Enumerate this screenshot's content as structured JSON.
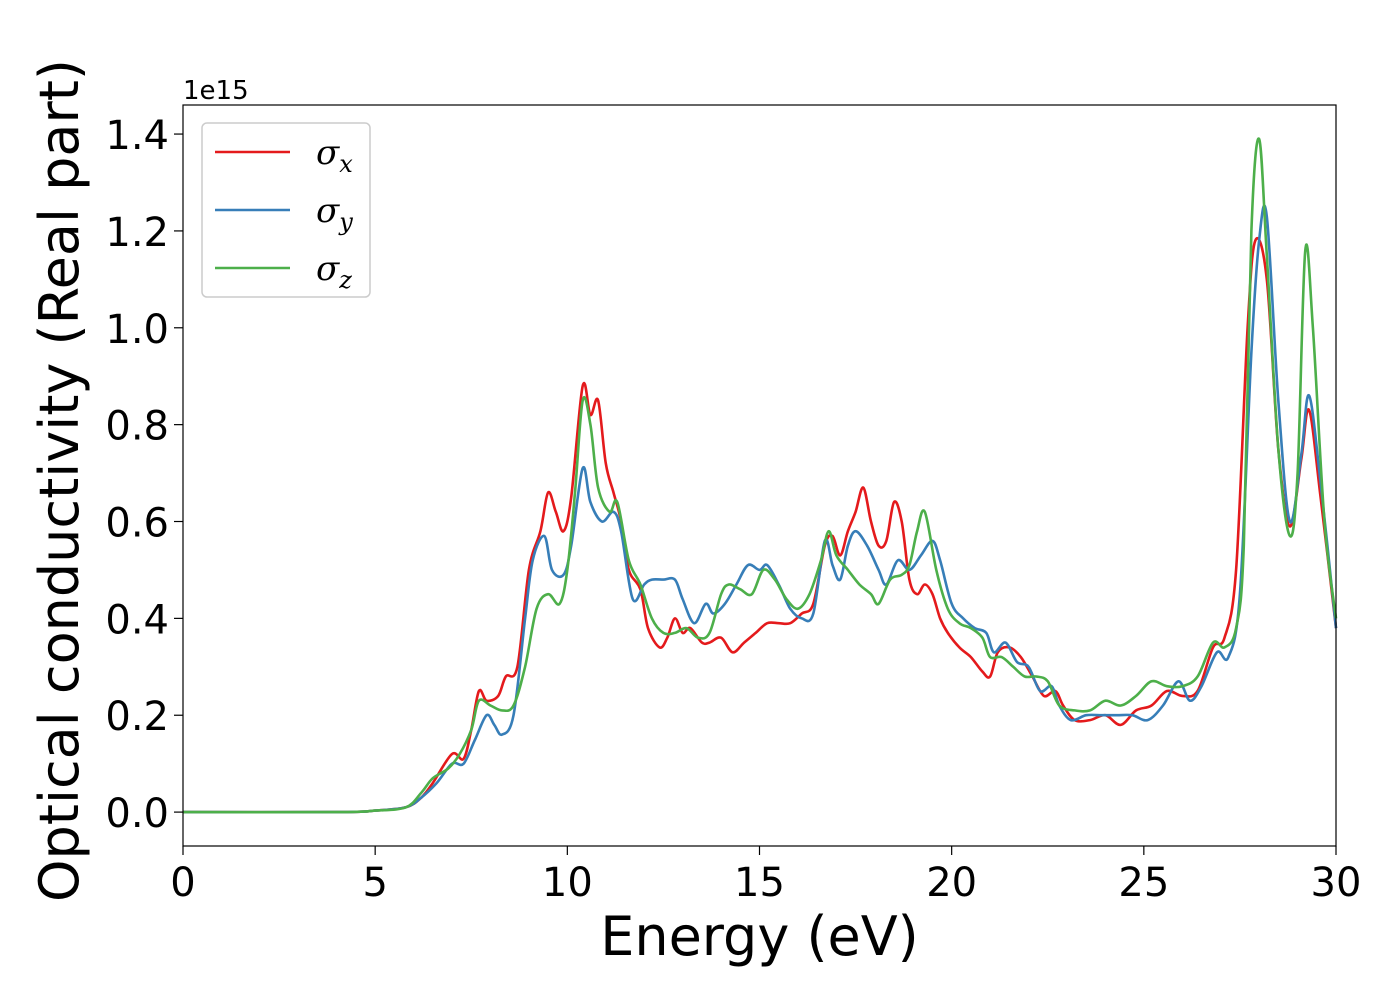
{
  "chart_data": {
    "type": "line",
    "title": "",
    "xlabel": "Energy (eV)",
    "ylabel": "Optical conductivity (Real part)",
    "y_offset_label": "1e15",
    "xlim": [
      0,
      30
    ],
    "ylim": [
      -0.07,
      1.46
    ],
    "xticks": [
      0,
      5,
      10,
      15,
      20,
      25,
      30
    ],
    "xtick_labels": [
      "0",
      "5",
      "10",
      "15",
      "20",
      "25",
      "30"
    ],
    "yticks": [
      0.0,
      0.2,
      0.4,
      0.6,
      0.8,
      1.0,
      1.2,
      1.4
    ],
    "ytick_labels": [
      "0.0",
      "0.2",
      "0.4",
      "0.6",
      "0.8",
      "1.0",
      "1.2",
      "1.4"
    ],
    "grid": false,
    "legend_position": "top-left",
    "series": [
      {
        "name": "σx",
        "name_base": "σ",
        "name_sub": "x",
        "color": "#e41a1c",
        "points": [
          [
            0,
            0
          ],
          [
            4,
            0
          ],
          [
            5,
            0.003
          ],
          [
            5.8,
            0.01
          ],
          [
            6.2,
            0.03
          ],
          [
            6.5,
            0.06
          ],
          [
            7,
            0.12
          ],
          [
            7.3,
            0.11
          ],
          [
            7.5,
            0.17
          ],
          [
            7.7,
            0.25
          ],
          [
            7.9,
            0.23
          ],
          [
            8.2,
            0.24
          ],
          [
            8.4,
            0.28
          ],
          [
            8.7,
            0.3
          ],
          [
            9,
            0.5
          ],
          [
            9.3,
            0.58
          ],
          [
            9.5,
            0.66
          ],
          [
            9.7,
            0.62
          ],
          [
            9.9,
            0.58
          ],
          [
            10.1,
            0.65
          ],
          [
            10.4,
            0.88
          ],
          [
            10.6,
            0.82
          ],
          [
            10.8,
            0.85
          ],
          [
            11,
            0.72
          ],
          [
            11.2,
            0.66
          ],
          [
            11.4,
            0.6
          ],
          [
            11.6,
            0.5
          ],
          [
            11.9,
            0.46
          ],
          [
            12.1,
            0.38
          ],
          [
            12.4,
            0.34
          ],
          [
            12.6,
            0.36
          ],
          [
            12.8,
            0.4
          ],
          [
            13,
            0.37
          ],
          [
            13.2,
            0.38
          ],
          [
            13.5,
            0.35
          ],
          [
            13.7,
            0.35
          ],
          [
            14,
            0.36
          ],
          [
            14.3,
            0.33
          ],
          [
            14.6,
            0.35
          ],
          [
            14.9,
            0.37
          ],
          [
            15.2,
            0.39
          ],
          [
            15.5,
            0.39
          ],
          [
            15.8,
            0.39
          ],
          [
            16.1,
            0.41
          ],
          [
            16.4,
            0.43
          ],
          [
            16.7,
            0.55
          ],
          [
            16.9,
            0.57
          ],
          [
            17.1,
            0.53
          ],
          [
            17.3,
            0.58
          ],
          [
            17.5,
            0.62
          ],
          [
            17.7,
            0.67
          ],
          [
            17.9,
            0.6
          ],
          [
            18.1,
            0.55
          ],
          [
            18.3,
            0.56
          ],
          [
            18.5,
            0.64
          ],
          [
            18.7,
            0.6
          ],
          [
            18.9,
            0.48
          ],
          [
            19.1,
            0.45
          ],
          [
            19.3,
            0.47
          ],
          [
            19.5,
            0.45
          ],
          [
            19.7,
            0.4
          ],
          [
            19.9,
            0.37
          ],
          [
            20.2,
            0.34
          ],
          [
            20.5,
            0.32
          ],
          [
            20.8,
            0.29
          ],
          [
            21,
            0.28
          ],
          [
            21.2,
            0.33
          ],
          [
            21.5,
            0.34
          ],
          [
            21.8,
            0.32
          ],
          [
            22.1,
            0.28
          ],
          [
            22.4,
            0.24
          ],
          [
            22.7,
            0.25
          ],
          [
            22.9,
            0.22
          ],
          [
            23.2,
            0.19
          ],
          [
            23.6,
            0.19
          ],
          [
            24,
            0.2
          ],
          [
            24.4,
            0.18
          ],
          [
            24.8,
            0.21
          ],
          [
            25.2,
            0.22
          ],
          [
            25.6,
            0.25
          ],
          [
            26,
            0.24
          ],
          [
            26.4,
            0.25
          ],
          [
            26.8,
            0.34
          ],
          [
            27.1,
            0.36
          ],
          [
            27.4,
            0.5
          ],
          [
            27.7,
            1.0
          ],
          [
            27.9,
            1.18
          ],
          [
            28.2,
            1.1
          ],
          [
            28.5,
            0.75
          ],
          [
            28.8,
            0.59
          ],
          [
            29.1,
            0.73
          ],
          [
            29.3,
            0.83
          ],
          [
            29.6,
            0.65
          ],
          [
            30,
            0.38
          ]
        ]
      },
      {
        "name": "σy",
        "name_base": "σ",
        "name_sub": "y",
        "color": "#377eb8",
        "points": [
          [
            0,
            0
          ],
          [
            4,
            0
          ],
          [
            5,
            0.003
          ],
          [
            5.8,
            0.01
          ],
          [
            6.2,
            0.03
          ],
          [
            6.6,
            0.06
          ],
          [
            7,
            0.1
          ],
          [
            7.3,
            0.1
          ],
          [
            7.6,
            0.15
          ],
          [
            7.9,
            0.2
          ],
          [
            8.1,
            0.18
          ],
          [
            8.3,
            0.16
          ],
          [
            8.6,
            0.2
          ],
          [
            8.9,
            0.4
          ],
          [
            9.1,
            0.52
          ],
          [
            9.4,
            0.57
          ],
          [
            9.6,
            0.5
          ],
          [
            9.9,
            0.49
          ],
          [
            10.1,
            0.55
          ],
          [
            10.4,
            0.71
          ],
          [
            10.6,
            0.64
          ],
          [
            10.9,
            0.6
          ],
          [
            11.2,
            0.62
          ],
          [
            11.4,
            0.58
          ],
          [
            11.7,
            0.44
          ],
          [
            12,
            0.47
          ],
          [
            12.2,
            0.48
          ],
          [
            12.5,
            0.48
          ],
          [
            12.8,
            0.48
          ],
          [
            13,
            0.44
          ],
          [
            13.3,
            0.39
          ],
          [
            13.6,
            0.43
          ],
          [
            13.8,
            0.41
          ],
          [
            14.1,
            0.43
          ],
          [
            14.4,
            0.47
          ],
          [
            14.7,
            0.51
          ],
          [
            15,
            0.5
          ],
          [
            15.2,
            0.51
          ],
          [
            15.5,
            0.47
          ],
          [
            15.8,
            0.42
          ],
          [
            16.1,
            0.4
          ],
          [
            16.4,
            0.41
          ],
          [
            16.7,
            0.56
          ],
          [
            16.9,
            0.51
          ],
          [
            17.1,
            0.48
          ],
          [
            17.3,
            0.55
          ],
          [
            17.5,
            0.58
          ],
          [
            17.8,
            0.55
          ],
          [
            18.1,
            0.5
          ],
          [
            18.3,
            0.47
          ],
          [
            18.6,
            0.52
          ],
          [
            18.9,
            0.5
          ],
          [
            19.2,
            0.53
          ],
          [
            19.5,
            0.56
          ],
          [
            19.7,
            0.52
          ],
          [
            20,
            0.43
          ],
          [
            20.3,
            0.4
          ],
          [
            20.6,
            0.38
          ],
          [
            20.9,
            0.37
          ],
          [
            21.1,
            0.33
          ],
          [
            21.4,
            0.35
          ],
          [
            21.7,
            0.31
          ],
          [
            22,
            0.3
          ],
          [
            22.3,
            0.25
          ],
          [
            22.6,
            0.26
          ],
          [
            22.8,
            0.22
          ],
          [
            23.1,
            0.19
          ],
          [
            23.5,
            0.2
          ],
          [
            23.9,
            0.2
          ],
          [
            24.3,
            0.2
          ],
          [
            24.7,
            0.2
          ],
          [
            25.1,
            0.19
          ],
          [
            25.5,
            0.22
          ],
          [
            25.9,
            0.27
          ],
          [
            26.2,
            0.23
          ],
          [
            26.5,
            0.26
          ],
          [
            26.9,
            0.33
          ],
          [
            27.2,
            0.32
          ],
          [
            27.5,
            0.45
          ],
          [
            27.8,
            0.95
          ],
          [
            28,
            1.18
          ],
          [
            28.2,
            1.23
          ],
          [
            28.5,
            0.85
          ],
          [
            28.8,
            0.6
          ],
          [
            29.1,
            0.74
          ],
          [
            29.3,
            0.86
          ],
          [
            29.6,
            0.68
          ],
          [
            30,
            0.38
          ]
        ]
      },
      {
        "name": "σz",
        "name_base": "σ",
        "name_sub": "z",
        "color": "#4daf4a",
        "points": [
          [
            0,
            0
          ],
          [
            4,
            0
          ],
          [
            5,
            0.003
          ],
          [
            5.8,
            0.01
          ],
          [
            6.2,
            0.04
          ],
          [
            6.5,
            0.07
          ],
          [
            6.9,
            0.09
          ],
          [
            7.2,
            0.12
          ],
          [
            7.5,
            0.17
          ],
          [
            7.7,
            0.23
          ],
          [
            8,
            0.22
          ],
          [
            8.3,
            0.21
          ],
          [
            8.6,
            0.22
          ],
          [
            8.9,
            0.3
          ],
          [
            9.2,
            0.42
          ],
          [
            9.5,
            0.45
          ],
          [
            9.8,
            0.43
          ],
          [
            10,
            0.5
          ],
          [
            10.2,
            0.66
          ],
          [
            10.4,
            0.85
          ],
          [
            10.6,
            0.8
          ],
          [
            10.8,
            0.67
          ],
          [
            11.1,
            0.62
          ],
          [
            11.3,
            0.64
          ],
          [
            11.6,
            0.52
          ],
          [
            11.9,
            0.47
          ],
          [
            12.2,
            0.4
          ],
          [
            12.5,
            0.37
          ],
          [
            12.8,
            0.37
          ],
          [
            13.1,
            0.38
          ],
          [
            13.4,
            0.36
          ],
          [
            13.7,
            0.37
          ],
          [
            14,
            0.45
          ],
          [
            14.2,
            0.47
          ],
          [
            14.5,
            0.46
          ],
          [
            14.8,
            0.45
          ],
          [
            15.1,
            0.5
          ],
          [
            15.4,
            0.48
          ],
          [
            15.7,
            0.44
          ],
          [
            16,
            0.42
          ],
          [
            16.3,
            0.45
          ],
          [
            16.6,
            0.52
          ],
          [
            16.8,
            0.58
          ],
          [
            17,
            0.53
          ],
          [
            17.3,
            0.5
          ],
          [
            17.6,
            0.47
          ],
          [
            17.9,
            0.45
          ],
          [
            18.1,
            0.43
          ],
          [
            18.4,
            0.48
          ],
          [
            18.7,
            0.49
          ],
          [
            18.9,
            0.51
          ],
          [
            19.1,
            0.58
          ],
          [
            19.3,
            0.62
          ],
          [
            19.6,
            0.5
          ],
          [
            19.9,
            0.42
          ],
          [
            20.2,
            0.39
          ],
          [
            20.5,
            0.38
          ],
          [
            20.8,
            0.36
          ],
          [
            21,
            0.32
          ],
          [
            21.3,
            0.32
          ],
          [
            21.6,
            0.3
          ],
          [
            21.9,
            0.28
          ],
          [
            22.2,
            0.28
          ],
          [
            22.5,
            0.27
          ],
          [
            22.8,
            0.22
          ],
          [
            23.2,
            0.21
          ],
          [
            23.6,
            0.21
          ],
          [
            24,
            0.23
          ],
          [
            24.4,
            0.22
          ],
          [
            24.8,
            0.24
          ],
          [
            25.2,
            0.27
          ],
          [
            25.6,
            0.26
          ],
          [
            26,
            0.26
          ],
          [
            26.4,
            0.28
          ],
          [
            26.8,
            0.35
          ],
          [
            27.1,
            0.34
          ],
          [
            27.4,
            0.38
          ],
          [
            27.6,
            0.55
          ],
          [
            27.8,
            1.2
          ],
          [
            28,
            1.39
          ],
          [
            28.2,
            1.15
          ],
          [
            28.5,
            0.75
          ],
          [
            28.8,
            0.57
          ],
          [
            29,
            0.7
          ],
          [
            29.2,
            1.16
          ],
          [
            29.4,
            1.0
          ],
          [
            29.7,
            0.6
          ],
          [
            30,
            0.4
          ]
        ]
      }
    ]
  }
}
